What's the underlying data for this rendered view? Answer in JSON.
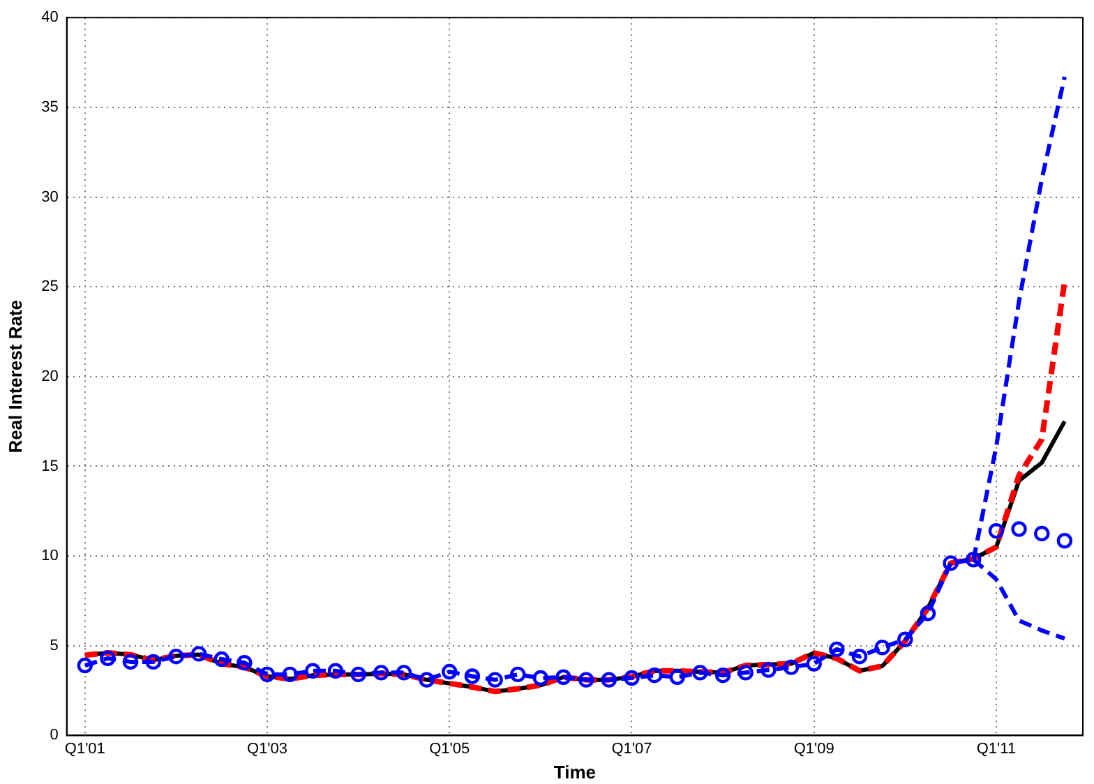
{
  "chart_data": {
    "type": "line",
    "xlabel": "Time",
    "ylabel": "Real Interest Rate",
    "categories": [
      "Q1'01",
      null,
      null,
      null,
      null,
      null,
      null,
      null,
      "Q1'03",
      null,
      null,
      null,
      null,
      null,
      null,
      null,
      "Q1'05",
      null,
      null,
      null,
      null,
      null,
      null,
      null,
      "Q1'07",
      null,
      null,
      null,
      null,
      null,
      null,
      null,
      "Q1'09",
      null,
      null,
      null,
      null,
      null,
      null,
      null,
      "Q1'11",
      null,
      null,
      null
    ],
    "ylim": [
      0,
      40
    ],
    "yticks": [
      0,
      5,
      10,
      15,
      20,
      25,
      30,
      35,
      40
    ],
    "grid": true,
    "series": [
      {
        "color": "#000000",
        "line_style": "solid",
        "marker": "none",
        "values": [
          4.47,
          4.6,
          4.5,
          4.2,
          4.44,
          4.5,
          4.0,
          3.8,
          3.3,
          3.15,
          3.35,
          3.4,
          3.4,
          3.45,
          3.4,
          3.1,
          2.9,
          2.7,
          2.45,
          2.6,
          2.8,
          3.25,
          3.1,
          3.1,
          3.27,
          3.6,
          3.6,
          3.55,
          3.5,
          3.9,
          3.95,
          4.0,
          4.6,
          4.29,
          3.6,
          3.87,
          5.25,
          7.1,
          9.6,
          9.85,
          10.5,
          14.2,
          15.2,
          17.5
        ]
      },
      {
        "color": "#ff0000",
        "line_style": "dashed",
        "marker": "none",
        "values": [
          4.47,
          4.6,
          4.5,
          4.2,
          4.44,
          4.5,
          4.0,
          3.8,
          3.3,
          3.15,
          3.35,
          3.4,
          3.4,
          3.45,
          3.4,
          3.1,
          2.9,
          2.7,
          2.45,
          2.6,
          2.8,
          3.25,
          3.1,
          3.1,
          3.27,
          3.6,
          3.6,
          3.55,
          3.5,
          3.9,
          3.95,
          4.0,
          4.6,
          4.29,
          3.6,
          3.87,
          5.25,
          7.1,
          9.6,
          9.85,
          10.5,
          14.5,
          16.5,
          25.3
        ]
      },
      {
        "color": "#0000ff",
        "line_style": "dashed",
        "marker": "circle",
        "values": [
          3.9,
          4.3,
          4.1,
          4.1,
          4.4,
          4.55,
          4.25,
          4.05,
          3.4,
          3.4,
          3.6,
          3.6,
          3.4,
          3.5,
          3.5,
          3.1,
          3.55,
          3.3,
          3.1,
          3.4,
          3.2,
          3.25,
          3.1,
          3.1,
          3.2,
          3.35,
          3.25,
          3.5,
          3.35,
          3.5,
          3.65,
          3.8,
          4.0,
          4.8,
          4.4,
          4.9,
          5.35,
          6.8,
          9.6,
          9.8,
          null,
          null,
          null,
          null
        ]
      },
      {
        "type": "scatter",
        "color": "#0000ff",
        "marker": "circle",
        "values": [
          null,
          null,
          null,
          null,
          null,
          null,
          null,
          null,
          null,
          null,
          null,
          null,
          null,
          null,
          null,
          null,
          null,
          null,
          null,
          null,
          null,
          null,
          null,
          null,
          null,
          null,
          null,
          null,
          null,
          null,
          null,
          null,
          null,
          null,
          null,
          null,
          null,
          null,
          null,
          null,
          11.4,
          11.5,
          11.25,
          10.85
        ]
      },
      {
        "color": "#0000ff",
        "line_style": "dashed",
        "marker": "none",
        "values": [
          null,
          null,
          null,
          null,
          null,
          null,
          null,
          null,
          null,
          null,
          null,
          null,
          null,
          null,
          null,
          null,
          null,
          null,
          null,
          null,
          null,
          null,
          null,
          null,
          null,
          null,
          null,
          null,
          null,
          null,
          null,
          null,
          null,
          null,
          null,
          null,
          null,
          null,
          null,
          9.8,
          16.1,
          24.2,
          31,
          36.7
        ]
      },
      {
        "color": "#0000ff",
        "line_style": "dashed",
        "marker": "none",
        "values": [
          null,
          null,
          null,
          null,
          null,
          null,
          null,
          null,
          null,
          null,
          null,
          null,
          null,
          null,
          null,
          null,
          null,
          null,
          null,
          null,
          null,
          null,
          null,
          null,
          null,
          null,
          null,
          null,
          null,
          null,
          null,
          null,
          null,
          null,
          null,
          null,
          null,
          null,
          null,
          9.8,
          8.7,
          6.4,
          5.85,
          5.4
        ]
      }
    ]
  }
}
